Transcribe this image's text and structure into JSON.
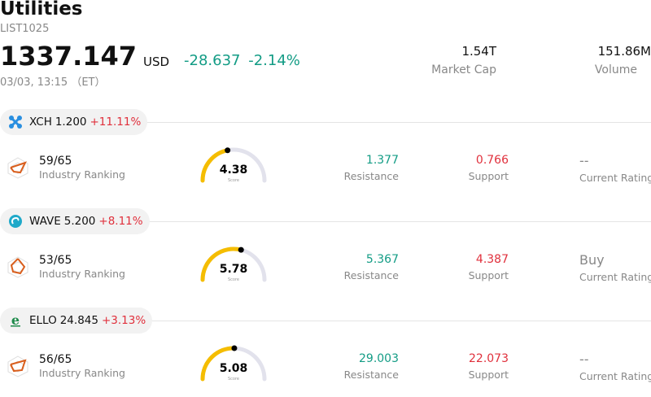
{
  "header": {
    "title": "Utilities",
    "code": "LIST1025",
    "price": "1337.147",
    "currency": "USD",
    "change": "-28.637",
    "change_pct": "-2.14%",
    "timestamp": "03/03, 13:15 （ET）",
    "market_cap_value": "1.54T",
    "market_cap_label": "Market Cap",
    "volume_value": "151.86M",
    "volume_label": "Volume",
    "change_color": "#139c85"
  },
  "stocks": [
    {
      "symbol": "XCH",
      "price": "1.200",
      "change_pct": "+11.11%",
      "icon": "xch-logo-icon",
      "rank": "59/65",
      "rank_label": "Industry Ranking",
      "score": "4.38",
      "score_label": "Score",
      "score_fraction": 0.438,
      "resistance": "1.377",
      "resistance_label": "Resistance",
      "support": "0.766",
      "support_label": "Support",
      "rating": "--",
      "rating_label": "Current Rating"
    },
    {
      "symbol": "WAVE",
      "price": "5.200",
      "change_pct": "+8.11%",
      "icon": "wave-logo-icon",
      "rank": "53/65",
      "rank_label": "Industry Ranking",
      "score": "5.78",
      "score_label": "Score",
      "score_fraction": 0.578,
      "resistance": "5.367",
      "resistance_label": "Resistance",
      "support": "4.387",
      "support_label": "Support",
      "rating": "Buy",
      "rating_label": "Current Rating"
    },
    {
      "symbol": "ELLO",
      "price": "24.845",
      "change_pct": "+3.13%",
      "icon": "ello-logo-icon",
      "rank": "56/65",
      "rank_label": "Industry Ranking",
      "score": "5.08",
      "score_label": "Score",
      "score_fraction": 0.508,
      "resistance": "29.003",
      "resistance_label": "Resistance",
      "support": "22.073",
      "support_label": "Support",
      "rating": "--",
      "rating_label": "Current Rating"
    }
  ],
  "colors": {
    "up_red": "#e0303c",
    "green": "#139c85",
    "buy_cyan": "#2ab9d4",
    "gauge_yellow": "#f5bd00",
    "gauge_track": "#e2e2ec"
  }
}
